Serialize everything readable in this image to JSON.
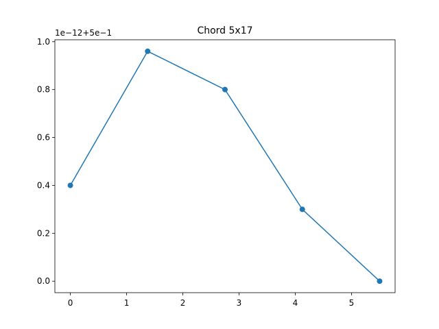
{
  "chart_data": {
    "type": "line",
    "title": "Chord 5x17",
    "offset_text": "1e−12+5e−1",
    "x_ticks": [
      "0",
      "1",
      "2",
      "3",
      "4",
      "5"
    ],
    "y_ticks": [
      "0.0",
      "0.2",
      "0.4",
      "0.6",
      "0.8",
      "1.0"
    ],
    "x_tick_values": [
      0,
      1,
      2,
      3,
      4,
      5
    ],
    "y_tick_values": [
      0.0,
      0.2,
      0.4,
      0.6,
      0.8,
      1.0
    ],
    "xlim": [
      -0.275,
      5.775
    ],
    "ylim": [
      -0.048,
      1.008
    ],
    "series": [
      {
        "x": [
          0.0,
          1.375,
          2.75,
          4.125,
          5.5
        ],
        "y": [
          0.4,
          0.96,
          0.8,
          0.3,
          0.0
        ],
        "color": "#1f77b4",
        "marker": "circle"
      }
    ],
    "grid": false
  }
}
